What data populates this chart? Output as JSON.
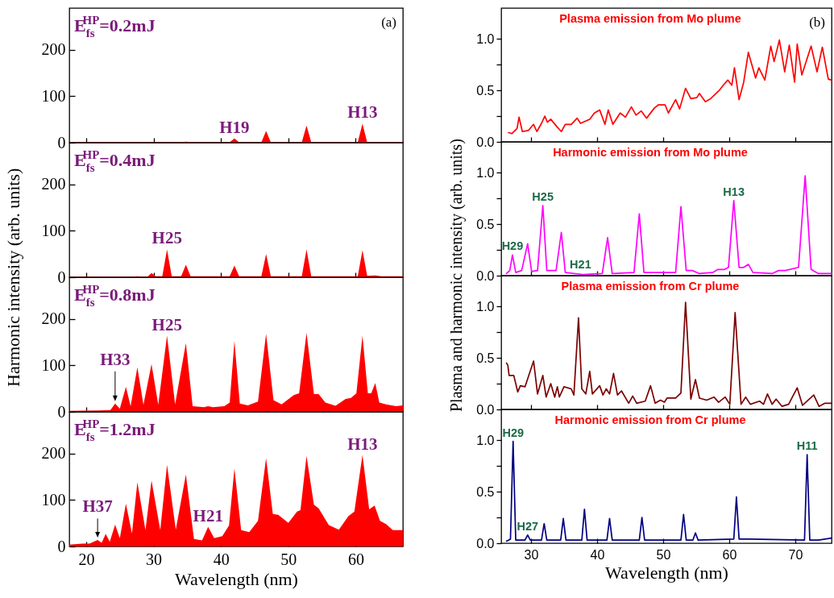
{
  "chart_data": [
    {
      "type": "area",
      "title": "E$_{fs}$$^{HP}$=0.2mJ",
      "color": "#ff0000",
      "xlim": [
        17.5,
        67
      ],
      "xticks": [
        20,
        30,
        40,
        50,
        60
      ],
      "ylim": [
        0,
        290
      ],
      "yticks": [
        0,
        100,
        200
      ],
      "tick_labels": "y",
      "ylabel": "Harmonic intensity (arb. units)",
      "x": [
        17.5,
        34.0,
        34.8,
        35.6,
        41.3,
        42.0,
        42.7,
        46.0,
        46.7,
        47.4,
        52.0,
        52.7,
        53.4,
        60.3,
        61.0,
        61.7,
        67
      ],
      "values": [
        1,
        1,
        2,
        1,
        1,
        9,
        1,
        1,
        25,
        1,
        1,
        37,
        1,
        1,
        41,
        1,
        1
      ],
      "annotations": [
        "(a)",
        {
          "text": "H19",
          "x": 42,
          "y": 9
        },
        {
          "text": "H13",
          "x": 61,
          "y": 41
        }
      ]
    },
    {
      "type": "area",
      "title": "E$_{fs}$$^{HP}$=0.4mJ",
      "color": "#ff0000",
      "xlim": [
        17.5,
        67
      ],
      "xticks": [
        20,
        30,
        40,
        50,
        60
      ],
      "ylim": [
        0,
        290
      ],
      "yticks": [
        0,
        100,
        200
      ],
      "tick_labels": "y",
      "x": [
        17.5,
        27,
        27.6,
        28.2,
        29.1,
        29.7,
        30.3,
        31.3,
        32.0,
        32.7,
        34.1,
        34.8,
        35.5,
        41.3,
        42.0,
        42.7,
        46.0,
        46.7,
        47.4,
        52.0,
        52.7,
        53.4,
        60.3,
        61.0,
        61.7,
        62.9,
        63.8,
        67
      ],
      "values": [
        1,
        1,
        2,
        1,
        1,
        9,
        2,
        2,
        60,
        2,
        2,
        27,
        2,
        2,
        25,
        2,
        2,
        50,
        2,
        2,
        60,
        2,
        2,
        58,
        3,
        4,
        2,
        2
      ],
      "annotations": [
        {
          "text": "H25",
          "x": 32,
          "y": 60
        }
      ]
    },
    {
      "type": "area",
      "title": "E$_{fs}$$^{HP}$=0.8mJ",
      "color": "#ff0000",
      "xlim": [
        17.5,
        67
      ],
      "xticks": [
        20,
        30,
        40,
        50,
        60
      ],
      "ylim": [
        0,
        290
      ],
      "yticks": [
        0,
        100,
        200
      ],
      "tick_labels": "y",
      "x": [
        17.5,
        22,
        23.6,
        24.3,
        25.0,
        25.9,
        26.6,
        27.6,
        28.5,
        29.7,
        30.7,
        32.0,
        33.2,
        34.8,
        35.8,
        37.5,
        38.1,
        38.8,
        40.5,
        41.3,
        42.0,
        42.8,
        44.0,
        45.5,
        46.7,
        47.8,
        49.0,
        50.8,
        51.6,
        52.7,
        53.8,
        54.5,
        55.5,
        57.0,
        58.5,
        59.3,
        60.1,
        61.0,
        61.8,
        62.3,
        62.9,
        63.5,
        64.5,
        66,
        67
      ],
      "values": [
        2,
        3,
        4,
        18,
        7,
        54,
        12,
        96,
        15,
        103,
        15,
        164,
        16,
        148,
        12,
        10,
        12,
        10,
        12,
        20,
        153,
        18,
        14,
        22,
        168,
        25,
        16,
        36,
        40,
        170,
        38,
        38,
        20,
        13,
        28,
        30,
        40,
        164,
        40,
        40,
        62,
        20,
        16,
        12,
        14
      ],
      "annotations": [
        {
          "text": "H33",
          "x": 24.3,
          "y": 18
        },
        {
          "text": "H25",
          "x": 32,
          "y": 164
        }
      ]
    },
    {
      "type": "area",
      "title": "E$_{fs}$$^{HP}$=1.2mJ",
      "color": "#ff0000",
      "xlim": [
        17.5,
        67
      ],
      "xticks": [
        20,
        30,
        40,
        50,
        60
      ],
      "ylim": [
        0,
        290
      ],
      "yticks": [
        0,
        100,
        200
      ],
      "xlabel": "Wavelength (nm)",
      "x": [
        17.5,
        19.5,
        20.5,
        21.7,
        22.3,
        22.9,
        23.5,
        24.3,
        25.0,
        25.9,
        26.8,
        27.6,
        28.8,
        29.7,
        31.0,
        32.0,
        33.3,
        34.8,
        36.0,
        37.2,
        38.1,
        39.0,
        40.2,
        41.2,
        42.0,
        43.0,
        44.2,
        45.5,
        46.7,
        47.7,
        48.5,
        50.0,
        51.3,
        51.8,
        52.7,
        53.8,
        54.5,
        56.0,
        57.5,
        58.9,
        59.8,
        61.0,
        62.0,
        62.8,
        63.6,
        64.5,
        65.5,
        67
      ],
      "values": [
        4,
        6,
        6,
        14,
        8,
        27,
        10,
        47,
        18,
        92,
        28,
        138,
        35,
        142,
        35,
        176,
        36,
        155,
        16,
        13,
        42,
        18,
        22,
        45,
        168,
        35,
        31,
        55,
        190,
        70,
        68,
        51,
        75,
        78,
        195,
        90,
        82,
        46,
        36,
        65,
        75,
        197,
        80,
        88,
        55,
        48,
        35,
        35
      ],
      "annotations": [
        {
          "text": "H37",
          "x": 21.7,
          "y": 14
        },
        {
          "text": "H21",
          "x": 38.1,
          "y": 42
        },
        {
          "text": "H13",
          "x": 61,
          "y": 197
        }
      ]
    },
    {
      "type": "line",
      "title": "Plasma emission from Mo plume",
      "color": "#ff0000",
      "xlim": [
        25.5,
        75.5
      ],
      "xticks": [
        30,
        40,
        50,
        60,
        70
      ],
      "ylim": [
        0,
        1.3
      ],
      "yticks": [
        {
          "value": 0,
          "label": "0.0"
        },
        {
          "value": 0.25,
          "label": null
        },
        {
          "value": 0.5,
          "label": "0.5"
        },
        {
          "value": 0.75,
          "label": null
        },
        {
          "value": 1,
          "label": "1.0"
        }
      ],
      "tick_labels": "y",
      "ylabel": "Plasma and harmonic intensity (arb. units)",
      "x": [
        26.6,
        27.1,
        27.9,
        28.2,
        28.7,
        29.6,
        30.4,
        30.9,
        31.6,
        32.1,
        32.5,
        33.0,
        33.9,
        34.6,
        35.2,
        36.1,
        37.0,
        37.5,
        38.9,
        39.6,
        40.4,
        41.2,
        41.7,
        42.4,
        43.5,
        44.3,
        45.2,
        45.9,
        46.7,
        47.5,
        48.7,
        49.3,
        50.3,
        50.8,
        51.9,
        52.5,
        53.4,
        54.2,
        55.1,
        55.5,
        56.4,
        57.2,
        58.5,
        59.1,
        59.8,
        60.4,
        60.8,
        61.5,
        62.2,
        62.9,
        64.0,
        64.5,
        65.4,
        66.3,
        66.8,
        67.6,
        68.4,
        69.1,
        69.9,
        70.3,
        71.0,
        72.4,
        73.3,
        74.1,
        75.0,
        75.5
      ],
      "values": [
        0.09,
        0.08,
        0.13,
        0.24,
        0.1,
        0.11,
        0.17,
        0.1,
        0.18,
        0.25,
        0.19,
        0.22,
        0.15,
        0.1,
        0.17,
        0.17,
        0.23,
        0.18,
        0.22,
        0.28,
        0.31,
        0.17,
        0.31,
        0.17,
        0.28,
        0.24,
        0.34,
        0.26,
        0.3,
        0.23,
        0.33,
        0.36,
        0.36,
        0.28,
        0.41,
        0.32,
        0.52,
        0.42,
        0.43,
        0.47,
        0.39,
        0.42,
        0.5,
        0.55,
        0.6,
        0.55,
        0.72,
        0.41,
        0.58,
        0.87,
        0.62,
        0.72,
        0.6,
        0.93,
        0.78,
        0.99,
        0.68,
        0.94,
        0.58,
        0.95,
        0.65,
        0.93,
        0.68,
        0.92,
        0.61,
        0.6
      ],
      "annotations": [
        "(b)"
      ]
    },
    {
      "type": "line",
      "title": "Harmonic emission from Mo plume",
      "color": "#ff00ff",
      "xlim": [
        25.5,
        75.5
      ],
      "xticks": [
        30,
        40,
        50,
        60,
        70
      ],
      "ylim": [
        0,
        1.3
      ],
      "yticks": [
        {
          "value": 0,
          "label": "0.0"
        },
        {
          "value": 0.25,
          "label": null
        },
        {
          "value": 0.5,
          "label": "0.5"
        },
        {
          "value": 0.75,
          "label": null
        },
        {
          "value": 1,
          "label": "1.0"
        }
      ],
      "tick_labels": "y",
      "x": [
        26.3,
        26.8,
        27.2,
        27.7,
        28.6,
        29.5,
        30.1,
        31.0,
        31.8,
        32.4,
        33.8,
        34.6,
        35.2,
        38,
        40.8,
        41.6,
        42.3,
        45.6,
        46.4,
        47.1,
        51.9,
        52.7,
        53.5,
        54.4,
        55.5,
        57.5,
        58.3,
        59.3,
        59.9,
        60.7,
        61.5,
        62.2,
        62.9,
        63.6,
        66.5,
        67.5,
        68.5,
        70.5,
        71.5,
        72.4,
        73.5,
        75.5
      ],
      "values": [
        0.02,
        0.05,
        0.2,
        0.03,
        0.05,
        0.31,
        0.04,
        0.05,
        0.68,
        0.05,
        0.05,
        0.42,
        0.03,
        0.01,
        0.02,
        0.37,
        0.02,
        0.03,
        0.6,
        0.03,
        0.03,
        0.67,
        0.05,
        0.05,
        0.02,
        0.03,
        0.06,
        0.06,
        0.08,
        0.73,
        0.08,
        0.08,
        0.11,
        0.03,
        0.02,
        0.05,
        0.05,
        0.08,
        0.97,
        0.06,
        0.02,
        0.02
      ],
      "annotations": [
        {
          "text": "H29",
          "x": 27.2,
          "y": 0.2
        },
        {
          "text": "H25",
          "x": 31.8,
          "y": 0.68
        },
        {
          "text": "H21",
          "x": 37.5,
          "y": 0.02
        },
        {
          "text": "H13",
          "x": 60.7,
          "y": 0.73
        }
      ]
    },
    {
      "type": "line",
      "title": "Plasma emission from Cr plume",
      "color": "#7a0000",
      "xlim": [
        25.5,
        75.5
      ],
      "xticks": [
        30,
        40,
        50,
        60,
        70
      ],
      "ylim": [
        0,
        1.3
      ],
      "yticks": [
        {
          "value": 0,
          "label": "0.0"
        },
        {
          "value": 0.25,
          "label": null
        },
        {
          "value": 0.5,
          "label": "0.5"
        },
        {
          "value": 0.75,
          "label": null
        },
        {
          "value": 1,
          "label": "1.0"
        }
      ],
      "tick_labels": "y",
      "x": [
        26.3,
        26.5,
        26.7,
        27.4,
        28.0,
        28.4,
        29.1,
        30.4,
        31.0,
        31.8,
        32.3,
        33.0,
        33.6,
        34.0,
        34.3,
        35.0,
        36.1,
        36.5,
        37.2,
        37.7,
        38.3,
        38.9,
        39.3,
        40.4,
        40.9,
        41.4,
        41.9,
        42.5,
        43.1,
        43.7,
        44.8,
        45.4,
        46.0,
        47.3,
        48.1,
        48.8,
        49.6,
        50.2,
        50.6,
        51.9,
        52.7,
        53.4,
        54.2,
        54.9,
        55.5,
        56.6,
        57.7,
        58.4,
        59.4,
        60.1,
        60.9,
        61.8,
        62.5,
        63.2,
        64.6,
        65.2,
        65.8,
        66.5,
        67.1,
        68.0,
        69.0,
        70.3,
        71.1,
        72.8,
        73.6,
        74.5,
        75.5
      ],
      "values": [
        0.45,
        0.43,
        0.33,
        0.33,
        0.17,
        0.23,
        0.22,
        0.47,
        0.15,
        0.33,
        0.12,
        0.25,
        0.12,
        0.22,
        0.12,
        0.22,
        0.2,
        0.14,
        0.89,
        0.2,
        0.15,
        0.37,
        0.15,
        0.23,
        0.14,
        0.2,
        0.15,
        0.35,
        0.14,
        0.18,
        0.06,
        0.13,
        0.06,
        0.08,
        0.23,
        0.06,
        0.09,
        0.07,
        0.11,
        0.11,
        0.16,
        1.04,
        0.1,
        0.29,
        0.11,
        0.09,
        0.12,
        0.07,
        0.12,
        0.05,
        0.94,
        0.05,
        0.12,
        0.05,
        0.08,
        0.05,
        0.15,
        0.05,
        0.1,
        0.03,
        0.05,
        0.21,
        0.04,
        0.14,
        0.03,
        0.06,
        0.06
      ]
    },
    {
      "type": "line",
      "title": "Harmonic emission from Cr plume",
      "color": "#000080",
      "xlim": [
        25.5,
        75.5
      ],
      "xticks": [
        30,
        40,
        50,
        60,
        70
      ],
      "ylim": [
        0,
        1.3
      ],
      "yticks": [
        {
          "value": 0,
          "label": "0.0"
        },
        {
          "value": 0.25,
          "label": null
        },
        {
          "value": 0.5,
          "label": "0.5"
        },
        {
          "value": 0.75,
          "label": null
        },
        {
          "value": 1,
          "label": "1.0"
        }
      ],
      "xlabel": "Wavelength (nm)",
      "x": [
        26.3,
        26.9,
        27.3,
        27.7,
        29.1,
        29.5,
        29.9,
        31.6,
        32.0,
        32.4,
        34.5,
        34.9,
        35.3,
        37.7,
        38.1,
        38.5,
        41.5,
        41.9,
        42.3,
        46.4,
        46.8,
        47.2,
        52.7,
        53.1,
        53.5,
        54.5,
        54.9,
        55.3,
        60.7,
        61.1,
        61.5,
        63,
        71.4,
        71.8,
        72.2,
        73.5,
        75.5
      ],
      "values": [
        0.02,
        0.04,
        0.99,
        0.03,
        0.03,
        0.08,
        0.03,
        0.03,
        0.19,
        0.03,
        0.03,
        0.24,
        0.03,
        0.03,
        0.33,
        0.03,
        0.03,
        0.24,
        0.03,
        0.03,
        0.25,
        0.03,
        0.03,
        0.28,
        0.03,
        0.03,
        0.1,
        0.03,
        0.04,
        0.45,
        0.04,
        0.04,
        0.03,
        0.86,
        0.03,
        0.03,
        0.05
      ],
      "annotations": [
        {
          "text": "H29",
          "x": 27.3,
          "y": 0.99
        },
        {
          "text": "H27",
          "x": 29.5,
          "y": 0.08
        },
        {
          "text": "H11",
          "x": 71.8,
          "y": 0.86
        }
      ]
    }
  ]
}
